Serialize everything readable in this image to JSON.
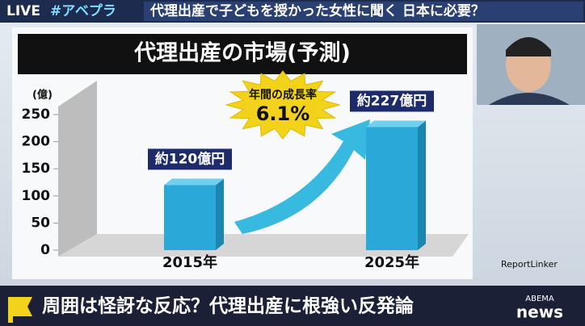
{
  "broadcast": {
    "live": "LIVE",
    "hashtag": "#アベプラ",
    "headline": "代理出産で子どもを授かった女性に聞く 日本に必要？",
    "caption": "周囲は怪訝な反応？代理出産に根強い反発論",
    "logo": [
      "ABEMA",
      "news"
    ]
  },
  "chart_data": {
    "type": "bar",
    "title": "代理出産の市場(予測)",
    "y_label": "(億)",
    "categories": [
      "2015年",
      "2025年"
    ],
    "values": [
      120,
      227
    ],
    "value_labels": [
      "約120億円",
      "約227億円"
    ],
    "color": "#2aa8d8",
    "ylim": [
      0,
      250
    ],
    "yticks": [
      0,
      50,
      100,
      150,
      200,
      250
    ],
    "annotation": {
      "label": "年間の成長率",
      "value": "6.1%"
    },
    "source": "ReportLinker"
  }
}
